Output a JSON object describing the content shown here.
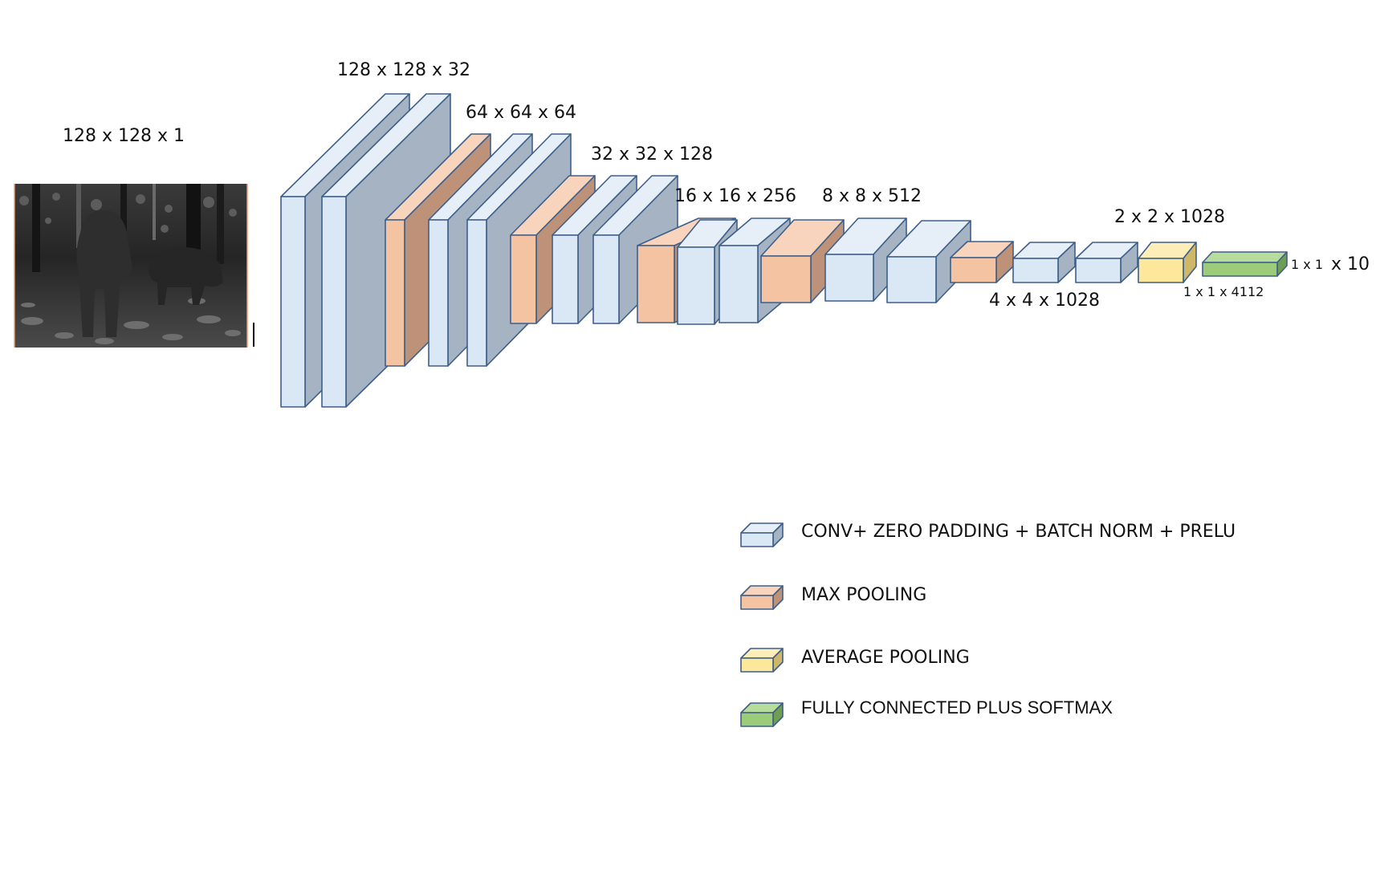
{
  "colors": {
    "conv_front": "#dae7f5",
    "conv_side": "#a5b3c2",
    "conv_top": "#e6eef8",
    "pool_front": "#f4c3a2",
    "pool_side": "#be9278",
    "pool_top": "#f8d4bc",
    "avg_front": "#fce79a",
    "avg_side": "#cfb76a",
    "avg_top": "#fdeeb9",
    "fc_front": "#9ccc79",
    "fc_side": "#6f9e52",
    "fc_top": "#b8dc9c",
    "edge": "#3d5f8a"
  },
  "input": {
    "label": "128 x 128 x 1",
    "image_icon": "grayscale-wildlife-camera-trap-photo"
  },
  "layers": [
    {
      "type": "conv"
    },
    {
      "type": "conv"
    },
    {
      "type": "max-pool"
    },
    {
      "type": "conv"
    },
    {
      "type": "conv"
    },
    {
      "type": "max-pool"
    },
    {
      "type": "conv"
    },
    {
      "type": "conv"
    },
    {
      "type": "max-pool"
    },
    {
      "type": "conv"
    },
    {
      "type": "conv"
    },
    {
      "type": "max-pool"
    },
    {
      "type": "conv"
    },
    {
      "type": "conv"
    },
    {
      "type": "max-pool"
    },
    {
      "type": "conv"
    },
    {
      "type": "conv"
    },
    {
      "type": "avg-pool"
    },
    {
      "type": "fc"
    }
  ],
  "labels": {
    "l1": "128 x 128 x 32",
    "l2": "64 x 64 x 64",
    "l3": "32 x 32 x 128",
    "l4": "16 x 16 x 256",
    "l5": "8 x 8 x 512",
    "l6": "4 x 4 x 1028",
    "l7": "2 x 2 x 1028",
    "l8": "1 x 1 x 4112",
    "out_small": "1 x 1",
    "out_large": "x 10"
  },
  "legend": [
    {
      "type": "conv",
      "text": "CONV+ ZERO PADDING + BATCH NORM + PRELU"
    },
    {
      "type": "max-pool",
      "text": "MAX POOLING"
    },
    {
      "type": "avg-pool",
      "text": "AVERAGE POOLING"
    },
    {
      "type": "fc",
      "text": "FULLY CONNECTED PLUS SOFTMAX"
    }
  ]
}
